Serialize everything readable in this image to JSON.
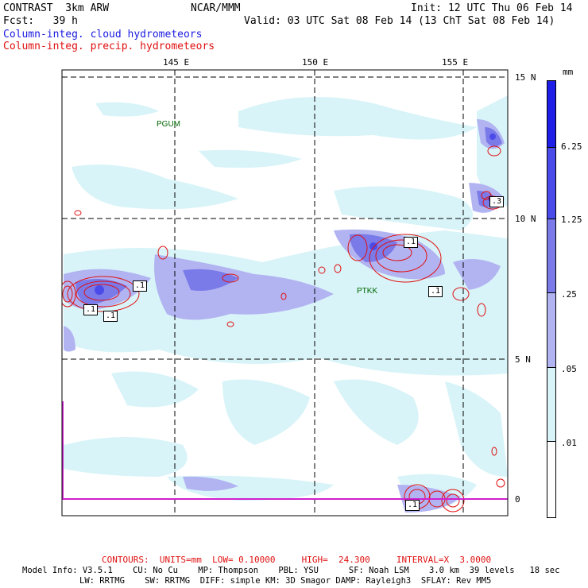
{
  "header": {
    "model_title": "CONTRAST  3km ARW",
    "org": "NCAR/MMM",
    "init": "Init: 12 UTC Thu 06 Feb 14",
    "fcst": "Fcst:   39 h",
    "valid": "Valid: 03 UTC Sat 08 Feb 14 (13 ChT Sat 08 Feb 14)",
    "field1": "Column-integ. cloud hydrometeors",
    "field2": "Column-integ. precip. hydrometeors"
  },
  "map": {
    "lon_labels": [
      "145 E",
      "150 E",
      "155 E"
    ],
    "lat_labels": [
      "15 N",
      "10 N",
      "5 N",
      "0"
    ],
    "stations": [
      "PGUM",
      "PTKK"
    ],
    "contour_labels": [
      ".1",
      ".1",
      ".1",
      ".1",
      ".1",
      ".3",
      ".1"
    ]
  },
  "colorbar": {
    "unit": "mm",
    "labels": [
      "6.25",
      "1.25",
      ".25",
      ".05",
      ".01"
    ],
    "colors": [
      "#1e1ee6",
      "#4b4bea",
      "#7a7ae8",
      "#b2b4f2",
      "#d8f4f8",
      "#ffffff"
    ]
  },
  "footer": {
    "contours": "CONTOURS:  UNITS=mm  LOW= 0.10000     HIGH=  24.300     INTERVAL=X  3.0000",
    "model_info_1": "Model Info: V3.5.1    CU: No Cu    MP: Thompson    PBL: YSU      SF: Noah LSM    3.0 km  39 levels   18 sec",
    "model_info_2": "LW: RRTMG    SW: RRTMG  DIFF: simple KM: 3D Smagor DAMP: Rayleigh3  SFLAY: Rev MM5"
  }
}
